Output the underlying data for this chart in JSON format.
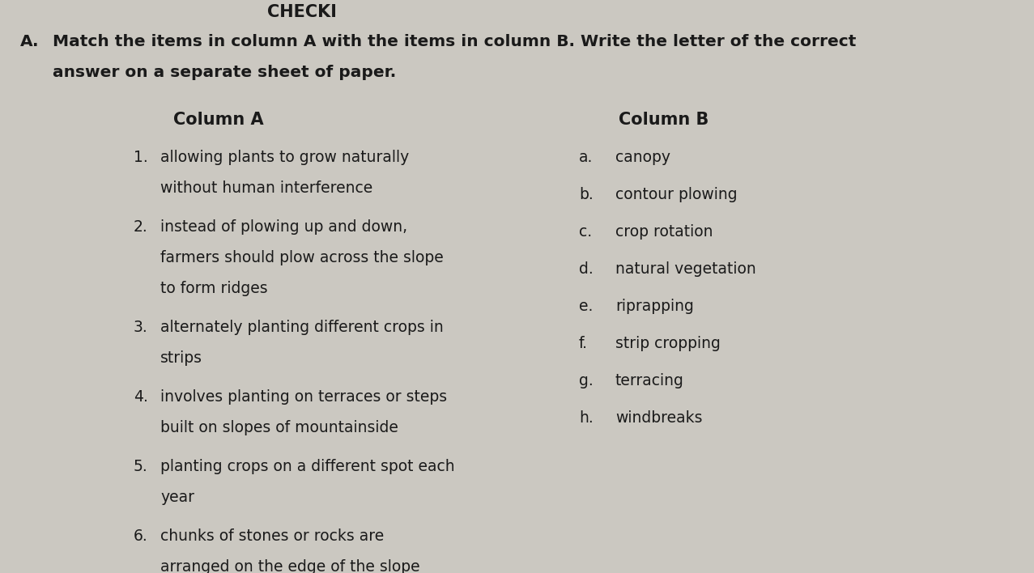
{
  "background_color": "#cbc8c1",
  "title_prefix": "A.",
  "title_line1": "Match the items in column A with the items in column B. Write the letter of the correct",
  "title_line2": "answer on a separate sheet of paper.",
  "header_left": "Column A",
  "header_right": "Column B",
  "column_a": [
    {
      "num": "1.",
      "lines": [
        "allowing plants to grow naturally",
        "without human interference"
      ]
    },
    {
      "num": "2.",
      "lines": [
        "instead of plowing up and down,",
        "farmers should plow across the slope",
        "to form ridges"
      ]
    },
    {
      "num": "3.",
      "lines": [
        "alternately planting different crops in",
        "strips"
      ]
    },
    {
      "num": "4.",
      "lines": [
        "involves planting on terraces or steps",
        "built on slopes of mountainside"
      ]
    },
    {
      "num": "5.",
      "lines": [
        "planting crops on a different spot each",
        "year"
      ]
    },
    {
      "num": "6.",
      "lines": [
        "chunks of stones or rocks are",
        "arranged on the edge of the slope"
      ]
    }
  ],
  "column_b": [
    {
      "letter": "a.",
      "text": "canopy"
    },
    {
      "letter": "b.",
      "text": "contour plowing"
    },
    {
      "letter": "c.",
      "text": "crop rotation"
    },
    {
      "letter": "d.",
      "text": "natural vegetation"
    },
    {
      "letter": "e.",
      "text": "riprapping"
    },
    {
      "letter": "f.",
      "text": "strip cropping"
    },
    {
      "letter": "g.",
      "text": "terracing"
    },
    {
      "letter": "h.",
      "text": "windbreaks"
    }
  ],
  "text_color": "#1a1a1a",
  "line_color": "#2a2a2a",
  "fs_title": 14.5,
  "fs_header": 15.0,
  "fs_body": 13.5,
  "fs_checker": 15.0
}
